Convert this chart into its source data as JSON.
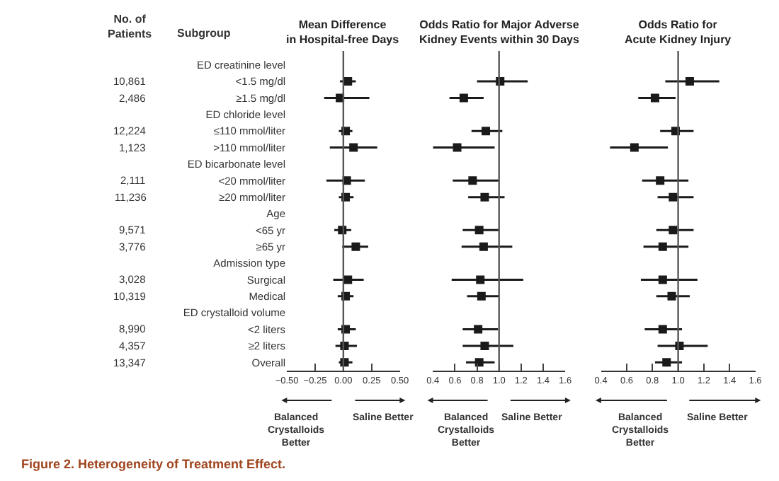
{
  "chart_data": [
    {
      "type": "scatter",
      "title": "Mean Difference\nin Hospital-free Days",
      "ylabel": "Subgroup",
      "orientation": "horizontal",
      "marker": "square",
      "color": "#1a1a1a",
      "categories": [
        "ED creatinine level",
        "<1.5 mg/dl",
        "≥1.5 mg/dl",
        "ED chloride level",
        "≤110 mmol/liter",
        ">110 mmol/liter",
        "ED bicarbonate level",
        "<20 mmol/liter",
        "≥20 mmol/liter",
        "Age",
        "<65 yr",
        "≥65 yr",
        "Admission type",
        "Surgical",
        "Medical",
        "ED crystalloid volume",
        "<2 liters",
        "≥2 liters",
        "Overall"
      ],
      "values": [
        null,
        0.04,
        -0.03,
        null,
        0.02,
        0.09,
        null,
        0.03,
        0.02,
        null,
        -0.01,
        0.11,
        null,
        0.04,
        0.02,
        null,
        0.02,
        0.01,
        0.01
      ],
      "errors": [
        null,
        [
          -0.03,
          0.11
        ],
        [
          -0.17,
          0.23
        ],
        null,
        [
          -0.04,
          0.08
        ],
        [
          -0.12,
          0.3
        ],
        null,
        [
          -0.15,
          0.19
        ],
        [
          -0.04,
          0.09
        ],
        null,
        [
          -0.08,
          0.07
        ],
        [
          -0.01,
          0.22
        ],
        null,
        [
          -0.09,
          0.18
        ],
        [
          -0.05,
          0.09
        ],
        null,
        [
          -0.05,
          0.11
        ],
        [
          -0.07,
          0.12
        ],
        [
          -0.04,
          0.08
        ]
      ],
      "xlim": [
        -0.5,
        0.5
      ],
      "xticks": [
        {
          "value": -0.5,
          "label": "−0.50"
        },
        {
          "value": -0.25,
          "label": "−0.25"
        },
        {
          "value": 0,
          "label": "0.00"
        },
        {
          "value": 0.25,
          "label": "0.25"
        },
        {
          "value": 0.5,
          "label": "0.50"
        }
      ],
      "ref_lines": [
        {
          "axis": "x",
          "value": 0,
          "color": "#555555"
        }
      ],
      "annotations": [
        "Balanced\nCrystalloids\nBetter",
        "Saline Better"
      ]
    },
    {
      "type": "scatter",
      "title": "Odds Ratio for Major Adverse\nKidney Events within 30 Days",
      "orientation": "horizontal",
      "marker": "square",
      "color": "#1a1a1a",
      "tick_labels": "x",
      "categories": [
        null,
        null,
        null,
        null,
        null,
        null,
        null,
        null,
        null,
        null,
        null,
        null,
        null,
        null,
        null,
        null,
        null,
        null,
        null
      ],
      "values": [
        null,
        1.01,
        0.68,
        null,
        0.88,
        0.62,
        null,
        0.76,
        0.87,
        null,
        0.82,
        0.86,
        null,
        0.83,
        0.84,
        null,
        0.81,
        0.87,
        0.82
      ],
      "errors": [
        null,
        [
          0.8,
          1.26
        ],
        [
          0.55,
          0.86
        ],
        null,
        [
          0.75,
          1.03
        ],
        [
          0.4,
          0.96
        ],
        null,
        [
          0.58,
          1.0
        ],
        [
          0.72,
          1.05
        ],
        null,
        [
          0.67,
          1.0
        ],
        [
          0.66,
          1.12
        ],
        null,
        [
          0.57,
          1.22
        ],
        [
          0.71,
          1.0
        ],
        null,
        [
          0.67,
          0.99
        ],
        [
          0.67,
          1.13
        ],
        [
          0.7,
          0.96
        ]
      ],
      "xlim": [
        0.4,
        1.6
      ],
      "xticks": [
        {
          "value": 0.4,
          "label": "0.4"
        },
        {
          "value": 0.6,
          "label": "0.6"
        },
        {
          "value": 0.8,
          "label": "0.8"
        },
        {
          "value": 1.0,
          "label": "1.0"
        },
        {
          "value": 1.2,
          "label": "1.2"
        },
        {
          "value": 1.4,
          "label": "1.4"
        },
        {
          "value": 1.6,
          "label": "1.6"
        }
      ],
      "ref_lines": [
        {
          "axis": "x",
          "value": 1.0,
          "color": "#555555"
        }
      ],
      "annotations": [
        "Balanced\nCrystalloids\nBetter",
        "Saline Better"
      ]
    },
    {
      "type": "scatter",
      "title": "Odds Ratio for\nAcute Kidney Injury",
      "orientation": "horizontal",
      "marker": "square",
      "color": "#1a1a1a",
      "tick_labels": "x",
      "categories": [
        null,
        null,
        null,
        null,
        null,
        null,
        null,
        null,
        null,
        null,
        null,
        null,
        null,
        null,
        null,
        null,
        null,
        null,
        null
      ],
      "values": [
        null,
        1.09,
        0.82,
        null,
        0.98,
        0.66,
        null,
        0.86,
        0.96,
        null,
        0.96,
        0.88,
        null,
        0.88,
        0.95,
        null,
        0.88,
        1.01,
        0.91
      ],
      "errors": [
        null,
        [
          0.9,
          1.32
        ],
        [
          0.69,
          0.98
        ],
        null,
        [
          0.86,
          1.12
        ],
        [
          0.47,
          0.92
        ],
        null,
        [
          0.72,
          1.08
        ],
        [
          0.84,
          1.12
        ],
        null,
        [
          0.83,
          1.12
        ],
        [
          0.73,
          1.08
        ],
        null,
        [
          0.71,
          1.15
        ],
        [
          0.83,
          1.09
        ],
        null,
        [
          0.74,
          1.03
        ],
        [
          0.84,
          1.23
        ],
        [
          0.82,
          1.03
        ]
      ],
      "xlim": [
        0.4,
        1.6
      ],
      "xticks": [
        {
          "value": 0.4,
          "label": "0.4"
        },
        {
          "value": 0.6,
          "label": "0.6"
        },
        {
          "value": 0.8,
          "label": "0.8"
        },
        {
          "value": 1.0,
          "label": "1.0"
        },
        {
          "value": 1.2,
          "label": "1.2"
        },
        {
          "value": 1.4,
          "label": "1.4"
        },
        {
          "value": 1.6,
          "label": "1.6"
        }
      ],
      "ref_lines": [
        {
          "axis": "x",
          "value": 1.0,
          "color": "#555555"
        }
      ],
      "annotations": [
        "Balanced\nCrystalloids\nBetter",
        "Saline Better",
        "Figure 2. Heterogeneity of Treatment Effect."
      ]
    },
    {
      "type": "other",
      "title": "No. of\nPatients",
      "annotations": [
        "10,861",
        "2,486",
        "12,224",
        "1,123",
        "2,111",
        "11,236",
        "9,571",
        "3,776",
        "3,028",
        "10,319",
        "8,990",
        "4,357",
        "13,347"
      ]
    }
  ]
}
